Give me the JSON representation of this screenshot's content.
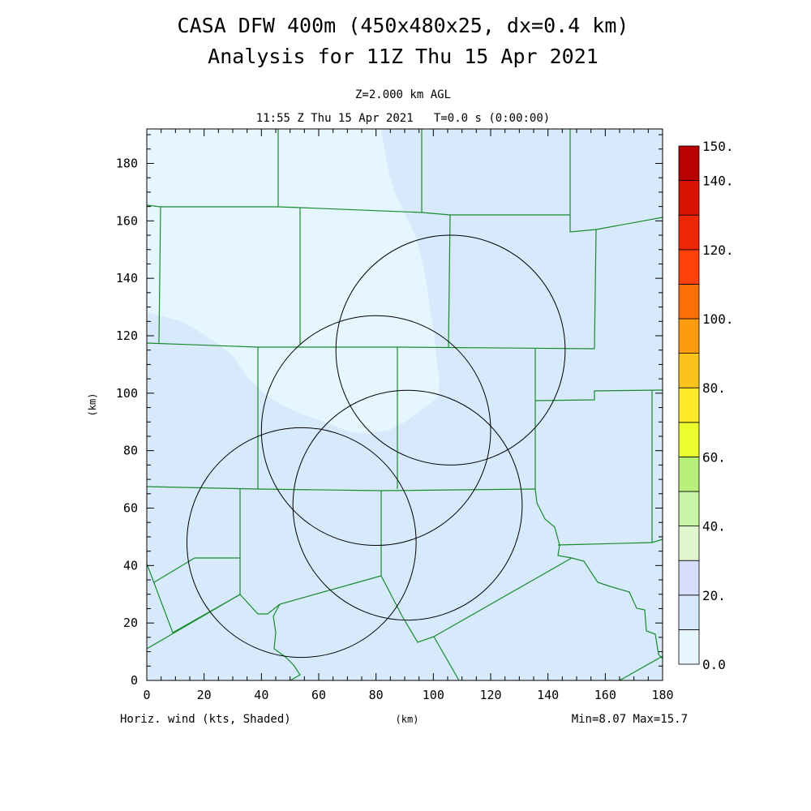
{
  "title_line1": "CASA DFW 400m (450x480x25, dx=0.4 km)",
  "title_line2": "Analysis for 11Z Thu 15 Apr 2021",
  "subtitle_line1": "Z=2.000 km AGL",
  "subtitle_line2": "11:55 Z Thu 15 Apr 2021   T=0.0 s (0:00:00)",
  "footer": {
    "left": "Horiz. wind (kts, Shaded)",
    "center": "(km)",
    "right": "Min=8.07 Max=15.7"
  },
  "chart_data": {
    "type": "heatmap",
    "title": "CASA DFW 400m (450x480x25, dx=0.4 km)",
    "subtitle": "Analysis for 11Z Thu 15 Apr 2021",
    "xlabel": "(km)",
    "ylabel": "(km)",
    "xlim": [
      0,
      180
    ],
    "ylim": [
      0,
      192
    ],
    "xticks": [
      0,
      20,
      40,
      60,
      80,
      100,
      120,
      140,
      160,
      180
    ],
    "yticks": [
      0,
      20,
      40,
      60,
      80,
      100,
      120,
      140,
      160,
      180
    ],
    "variable": "Horiz. wind (kts, Shaded)",
    "min": 8.07,
    "max": 15.7,
    "grid": false,
    "colorbar": {
      "levels": [
        0,
        10,
        20,
        30,
        40,
        50,
        60,
        70,
        80,
        90,
        100,
        110,
        120,
        130,
        140,
        150
      ],
      "colors": [
        "#e6f6fe",
        "#d6eafc",
        "#d6defb",
        "#dff7cf",
        "#c9f3a5",
        "#b7ef7a",
        "#eafe2e",
        "#fde92a",
        "#fdc21b",
        "#fe9b0f",
        "#fd7008",
        "#fd4108",
        "#ee2605",
        "#d91404",
        "#b80201"
      ],
      "labels": [
        "0.0",
        "20.",
        "40.",
        "60.",
        "80.",
        "100.",
        "120.",
        "140.",
        "150."
      ],
      "label_values": [
        0,
        20,
        40,
        60,
        80,
        100,
        120,
        140,
        150
      ]
    },
    "radar_rings": [
      {
        "center": [
          54,
          48
        ],
        "radius": 40
      },
      {
        "center": [
          80,
          87
        ],
        "radius": 40
      },
      {
        "center": [
          106,
          115
        ],
        "radius": 40
      },
      {
        "center": [
          91,
          61
        ],
        "radius": 40
      }
    ],
    "shading": {
      "low_region_color": "#e6f6fe",
      "high_region_color": "#d6eafc"
    }
  }
}
